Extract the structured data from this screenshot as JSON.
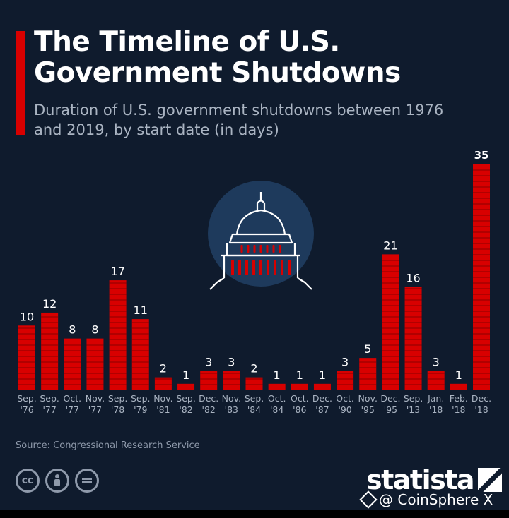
{
  "header": {
    "title": "The Timeline of U.S. Government Shutdowns",
    "subtitle": "Duration of U.S. government shutdowns between 1976 and 2019, by start date (in days)"
  },
  "footer": {
    "source": "Source: Congressional Research Service",
    "brand": "statista",
    "license_icons": [
      "cc-icon",
      "attribution-icon",
      "no-derivatives-icon"
    ],
    "watermark": "@ CoinSphere X"
  },
  "colors": {
    "background": "#0f1b2d",
    "bar": "#d80000",
    "text": "#ffffff",
    "muted": "#aab4c2"
  },
  "chart_data": {
    "type": "bar",
    "title": "The Timeline of U.S. Government Shutdowns",
    "subtitle": "Duration of U.S. government shutdowns between 1976 and 2019, by start date (in days)",
    "categories": [
      [
        "Sep.",
        "'76"
      ],
      [
        "Sep.",
        "'77"
      ],
      [
        "Oct.",
        "'77"
      ],
      [
        "Nov.",
        "'77"
      ],
      [
        "Sep.",
        "'78"
      ],
      [
        "Sep.",
        "'79"
      ],
      [
        "Nov.",
        "'81"
      ],
      [
        "Sep.",
        "'82"
      ],
      [
        "Dec.",
        "'82"
      ],
      [
        "Nov.",
        "'83"
      ],
      [
        "Sep.",
        "'84"
      ],
      [
        "Oct.",
        "'84"
      ],
      [
        "Oct.",
        "'86"
      ],
      [
        "Dec.",
        "'87"
      ],
      [
        "Oct.",
        "'90"
      ],
      [
        "Nov.",
        "'95"
      ],
      [
        "Dec.",
        "'95"
      ],
      [
        "Sep.",
        "'13"
      ],
      [
        "Jan.",
        "'18"
      ],
      [
        "Feb.",
        "'18"
      ],
      [
        "Dec.",
        "'18"
      ]
    ],
    "values": [
      10,
      12,
      8,
      8,
      17,
      11,
      2,
      1,
      3,
      3,
      2,
      1,
      1,
      1,
      3,
      5,
      21,
      16,
      3,
      1,
      35
    ],
    "highlight_last_label_bold": true,
    "xlabel": "",
    "ylabel": "",
    "ylim": [
      0,
      35
    ],
    "grid": false,
    "legend": "none",
    "illustration": "capitol-dome-icon"
  }
}
